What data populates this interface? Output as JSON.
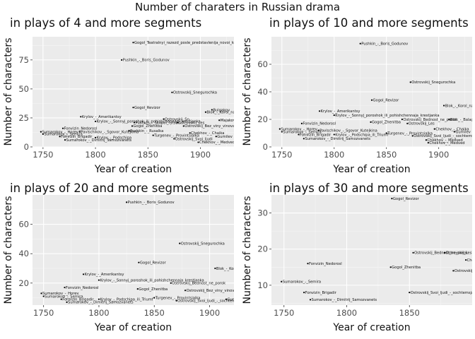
{
  "suptitle": "Number of charaters in Russian drama",
  "chart_data": [
    {
      "type": "scatter",
      "title": "in plays of 4 and more segments",
      "xlabel": "Year of creation",
      "ylabel": "Number of characters",
      "xlim": [
        1740,
        1932
      ],
      "ylim": [
        0,
        95
      ],
      "xticks": [
        1750,
        1800,
        1850,
        1900
      ],
      "yticks": [
        0,
        25,
        50,
        75
      ],
      "grid": true,
      "points": [
        {
          "x": 1836,
          "y": 90,
          "label": "Gogol_Teatralnyi_razezd_posle_predstavlenija_novoi_kom"
        },
        {
          "x": 1825,
          "y": 75,
          "label": "Pushkin_-_Boris_Godunov"
        },
        {
          "x": 1873,
          "y": 47,
          "label": "Ostrovskij_Snegurochka"
        },
        {
          "x": 1836,
          "y": 34,
          "label": "Gogol_Revizor"
        },
        {
          "x": 1905,
          "y": 30,
          "label": "Blok_-_Korol_na_ploshchadi"
        },
        {
          "x": 1911,
          "y": 32,
          "label": "Bulgakov"
        },
        {
          "x": 1918,
          "y": 23,
          "label": "Majakovskij"
        },
        {
          "x": 1786,
          "y": 26,
          "label": "Krylov_-_Amerikantsy"
        },
        {
          "x": 1800,
          "y": 22,
          "label": "Krylov_-_Sonnyj_poroshok_ili_pohishchennaja_krestjanka"
        },
        {
          "x": 1837,
          "y": 21,
          "label": "Pushkin_-_Skupoi_rytsar"
        },
        {
          "x": 1865,
          "y": 24,
          "label": "Ostrovskij_Sn"
        },
        {
          "x": 1769,
          "y": 16,
          "label": "Fonvizin_Nedorosl"
        },
        {
          "x": 1785,
          "y": 13,
          "label": "Pavlschikov_-_Sgovor_Kutejkina"
        },
        {
          "x": 1835,
          "y": 18,
          "label": "Gogol_Zhenitba"
        },
        {
          "x": 1878,
          "y": 21,
          "label": "Ostrovskij_Les"
        },
        {
          "x": 1884,
          "y": 18,
          "label": "Ostrovskij_Bez_viny_vinovatye"
        },
        {
          "x": 1748,
          "y": 13,
          "label": "Sumarokov_-_Horev"
        },
        {
          "x": 1750,
          "y": 11,
          "label": "Sumarokov_-_Semira"
        },
        {
          "x": 1766,
          "y": 9,
          "label": "Fonvizin_Brigadir"
        },
        {
          "x": 1800,
          "y": 8,
          "label": "Krylov_-_Podschipa"
        },
        {
          "x": 1771,
          "y": 6,
          "label": "Sumarokov_-_Dimitrij_Samozvanets"
        },
        {
          "x": 1832,
          "y": 14,
          "label": "Pushkin_-_Rusalka"
        },
        {
          "x": 1855,
          "y": 10,
          "label": "Turgenev_-_Provintsialka"
        },
        {
          "x": 1875,
          "y": 7,
          "label": "Ostrovskij_Svoi_ljudi"
        },
        {
          "x": 1890,
          "y": 12,
          "label": "Chekhov_-_Chaika"
        },
        {
          "x": 1898,
          "y": 4,
          "label": "Chekhov_-_Medved"
        },
        {
          "x": 1915,
          "y": 9,
          "label": "Gumilev"
        }
      ]
    },
    {
      "type": "scatter",
      "title": "in plays of 10 and more segments",
      "xlabel": "Year of creation",
      "ylabel": "Number of characters",
      "xlim": [
        1740,
        1932
      ],
      "ylim": [
        0,
        80
      ],
      "xticks": [
        1750,
        1800,
        1850,
        1900
      ],
      "yticks": [
        0,
        20,
        40,
        60
      ],
      "grid": true,
      "points": [
        {
          "x": 1825,
          "y": 75,
          "label": "Pushkin_-_Boris_Godunov"
        },
        {
          "x": 1873,
          "y": 47,
          "label": "Ostrovskij_Snegurochka"
        },
        {
          "x": 1836,
          "y": 34,
          "label": "Gogol_Revizor"
        },
        {
          "x": 1905,
          "y": 30,
          "label": "Blok_-_Korol_na_ploshchadi"
        },
        {
          "x": 1786,
          "y": 26,
          "label": "Krylov_-_Amerikantsy"
        },
        {
          "x": 1800,
          "y": 23,
          "label": "Krylov_-_Sonnyj_poroshok_ili_pohishchennaja_krestjanka"
        },
        {
          "x": 1769,
          "y": 17,
          "label": "Fonvizin_Nedorosl"
        },
        {
          "x": 1785,
          "y": 12,
          "label": "Pavlschikov_-_Sgovor_Kutejkina"
        },
        {
          "x": 1835,
          "y": 18,
          "label": "Gogol_Zhenitba"
        },
        {
          "x": 1865,
          "y": 20,
          "label": "Ostrovskij_Bednost_ne_porok"
        },
        {
          "x": 1870,
          "y": 17,
          "label": "Ostrovskij_Les"
        },
        {
          "x": 1896,
          "y": 13,
          "label": "Chekhov_-_Chaika"
        },
        {
          "x": 1910,
          "y": 20,
          "label": "Blok_-_Balaganchik"
        },
        {
          "x": 1748,
          "y": 13,
          "label": "Sumarokov_-_Horev"
        },
        {
          "x": 1750,
          "y": 11,
          "label": "Sumarokov_-_Semira"
        },
        {
          "x": 1766,
          "y": 9,
          "label": "Fonvizin_Brigadir"
        },
        {
          "x": 1800,
          "y": 9,
          "label": "Krylov_-_Podschipa_ili_Triumf"
        },
        {
          "x": 1771,
          "y": 6,
          "label": "Sumarokov_-_Dimitrij_Samozvanets"
        },
        {
          "x": 1850,
          "y": 10,
          "label": "Turgenev_-_Provintsialka"
        },
        {
          "x": 1875,
          "y": 8,
          "label": "Ostrovskij_Svoi_ljudi_-_sochtemsja"
        },
        {
          "x": 1888,
          "y": 5,
          "label": "Chekhov_-_Medved"
        },
        {
          "x": 1890,
          "y": 3,
          "label": "Chekhov_-_Medved"
        },
        {
          "x": 1915,
          "y": 11,
          "label": "Gumilev"
        }
      ]
    },
    {
      "type": "scatter",
      "title": "in plays of 20 and more segments",
      "xlabel": "Year of creation",
      "ylabel": "Number of characters",
      "xlim": [
        1740,
        1922
      ],
      "ylim": [
        5,
        80
      ],
      "xticks": [
        1750,
        1800,
        1850,
        1900
      ],
      "yticks": [
        20,
        40,
        60
      ],
      "grid": true,
      "points": [
        {
          "x": 1825,
          "y": 75,
          "label": "Pushkin_-_Boris_Godunov"
        },
        {
          "x": 1873,
          "y": 47,
          "label": "Ostrovskij_Snegurochka"
        },
        {
          "x": 1836,
          "y": 34,
          "label": "Gogol_Revizor"
        },
        {
          "x": 1905,
          "y": 30,
          "label": "Blok_-_Korol_na_ploshchadi"
        },
        {
          "x": 1786,
          "y": 26,
          "label": "Krylov_-_Amerikantsy"
        },
        {
          "x": 1800,
          "y": 22,
          "label": "Krylov_-_Sonnyj_poroshok_ili_pohishchennaja_krestjanka"
        },
        {
          "x": 1769,
          "y": 17,
          "label": "Fonvizin_Nedorosl"
        },
        {
          "x": 1835,
          "y": 16,
          "label": "Gogol_Zhenitba"
        },
        {
          "x": 1865,
          "y": 20,
          "label": "Ostrovskij_Bednost_ne_porok"
        },
        {
          "x": 1878,
          "y": 15,
          "label": "Ostrovskij_Bez_viny_vinovatye"
        },
        {
          "x": 1748,
          "y": 13,
          "label": "Sumarokov_-_Horev"
        },
        {
          "x": 1750,
          "y": 11,
          "label": "Sumarokov_-_Semira"
        },
        {
          "x": 1766,
          "y": 9,
          "label": "Fonvizin_Brigadir"
        },
        {
          "x": 1800,
          "y": 9,
          "label": "Krylov_-_Podschipa_ili_Triumf"
        },
        {
          "x": 1771,
          "y": 7,
          "label": "Sumarokov_-_Dimitrij_Samozvanets"
        },
        {
          "x": 1850,
          "y": 10,
          "label": "Turgenev_-_Provintsialka"
        },
        {
          "x": 1870,
          "y": 8,
          "label": "Ostrovskij_Svoi_ljudi_-_sochtemsja"
        },
        {
          "x": 1915,
          "y": 9,
          "label": "Gumilev"
        }
      ]
    },
    {
      "type": "scatter",
      "title": "in plays of 30 and more segments",
      "xlabel": "Year of creation",
      "ylabel": "Number of characters",
      "xlim": [
        1740,
        1900
      ],
      "ylim": [
        4.5,
        35
      ],
      "xticks": [
        1750,
        1800,
        1850
      ],
      "yticks": [
        10,
        20,
        30
      ],
      "grid": true,
      "points": [
        {
          "x": 1836,
          "y": 34,
          "label": "Gogol_Revizor"
        },
        {
          "x": 1769,
          "y": 16,
          "label": "Fonvizin_Nedorosl"
        },
        {
          "x": 1835,
          "y": 15,
          "label": "Gogol_Zhenitba"
        },
        {
          "x": 1853,
          "y": 19,
          "label": "Ostrovskij_Bednost_ne_porok"
        },
        {
          "x": 1878,
          "y": 19,
          "label": "Ostrovskij_Les"
        },
        {
          "x": 1885,
          "y": 14,
          "label": "Ostrovskij_Bez_viny_vinovatye"
        },
        {
          "x": 1895,
          "y": 17,
          "label": "Chekhov"
        },
        {
          "x": 1748,
          "y": 11,
          "label": "Sumarokov_-_Semira"
        },
        {
          "x": 1766,
          "y": 8,
          "label": "Fonvizin_Brigadir"
        },
        {
          "x": 1771,
          "y": 6,
          "label": "Sumarokov_-_Dimitrij_Samozvanets"
        },
        {
          "x": 1850,
          "y": 8,
          "label": "Ostrovskij_Svoi_ljudi_-_sochtemsja"
        }
      ]
    }
  ]
}
